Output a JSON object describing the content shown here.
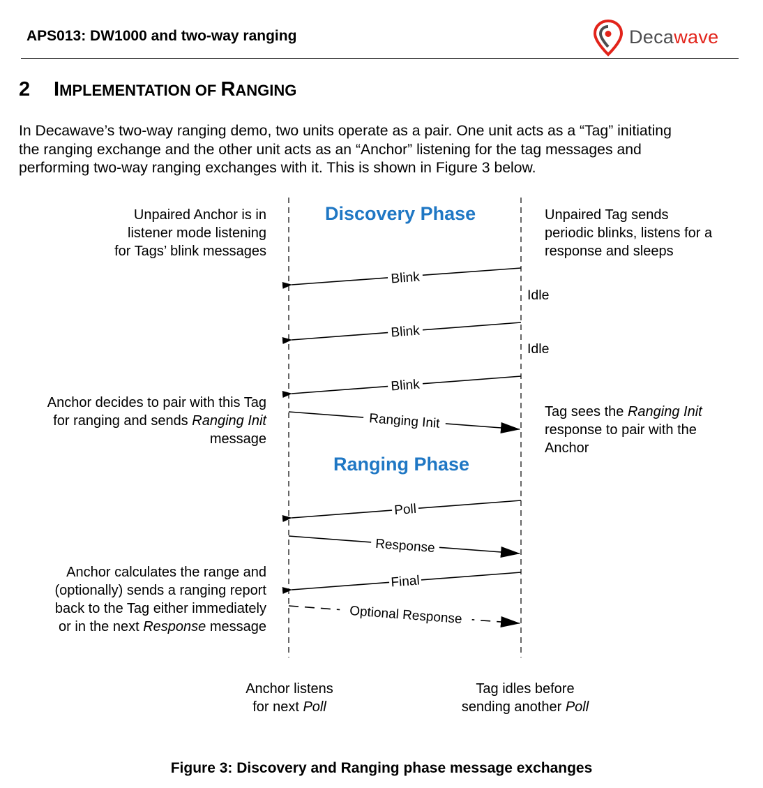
{
  "header": {
    "title": "APS013: DW1000 and two-way ranging",
    "logo": {
      "icon": "decawave-logo-icon",
      "word_part1": "Deca",
      "word_part2": "wave"
    }
  },
  "section": {
    "number": "2",
    "title_first": "I",
    "title_rest": "MPLEMENTATION OF ",
    "title_second": "R",
    "title_last": "ANGING"
  },
  "intro": {
    "lines": [
      "In Decawave’s two-way ranging demo, two units operate as a pair. One unit acts as a “Tag” initiating",
      "the ranging exchange and the other unit acts as an “Anchor” listening for the tag messages and",
      "performing two-way ranging exchanges with it. This is shown in Figure 3 below."
    ]
  },
  "diagram": {
    "discovery_phase": "Discovery Phase",
    "ranging_phase": "Ranging Phase",
    "anchor_note_1": [
      "Unpaired Anchor is in",
      "listener mode listening",
      "for Tags’ blink messages"
    ],
    "tag_note_1": [
      "Unpaired Tag sends",
      "periodic blinks, listens for a",
      "response and sleeps"
    ],
    "anchor_note_2": {
      "line1": "Anchor decides to pair with this Tag",
      "line2_plain": "for ranging and sends ",
      "line2_italic": "Ranging Init",
      "line3": "message"
    },
    "tag_note_2": {
      "line1_plain": "Tag sees the ",
      "line1_italic": "Ranging Init",
      "line2": "response to pair with the",
      "line3": "Anchor"
    },
    "anchor_note_3": {
      "line1": "Anchor calculates the range and",
      "line2": "(optionally) sends a ranging report",
      "line3": "back to the Tag either immediately",
      "line4_plain1": "or in the next ",
      "line4_italic": "Response",
      "line4_plain2": " message"
    },
    "anchor_bottom": {
      "line1": "Anchor listens",
      "line2_plain": "for next ",
      "line2_italic": "Poll"
    },
    "tag_bottom": {
      "line1": "Tag idles before",
      "line2_plain": "sending another ",
      "line2_italic": "Poll"
    },
    "idle_labels": [
      "Idle",
      "Idle"
    ],
    "messages": [
      {
        "label": "Blink",
        "direction": "tag-to-anchor",
        "style": "solid"
      },
      {
        "label": "Blink",
        "direction": "tag-to-anchor",
        "style": "solid"
      },
      {
        "label": "Blink",
        "direction": "tag-to-anchor",
        "style": "solid"
      },
      {
        "label": "Ranging Init",
        "direction": "anchor-to-tag",
        "style": "solid"
      },
      {
        "label": "Poll",
        "direction": "tag-to-anchor",
        "style": "solid"
      },
      {
        "label": "Response",
        "direction": "anchor-to-tag",
        "style": "solid"
      },
      {
        "label": "Final",
        "direction": "tag-to-anchor",
        "style": "solid"
      },
      {
        "label": "Optional Response",
        "direction": "anchor-to-tag",
        "style": "dashed"
      }
    ]
  },
  "caption": "Figure 3: Discovery and Ranging phase message exchanges"
}
